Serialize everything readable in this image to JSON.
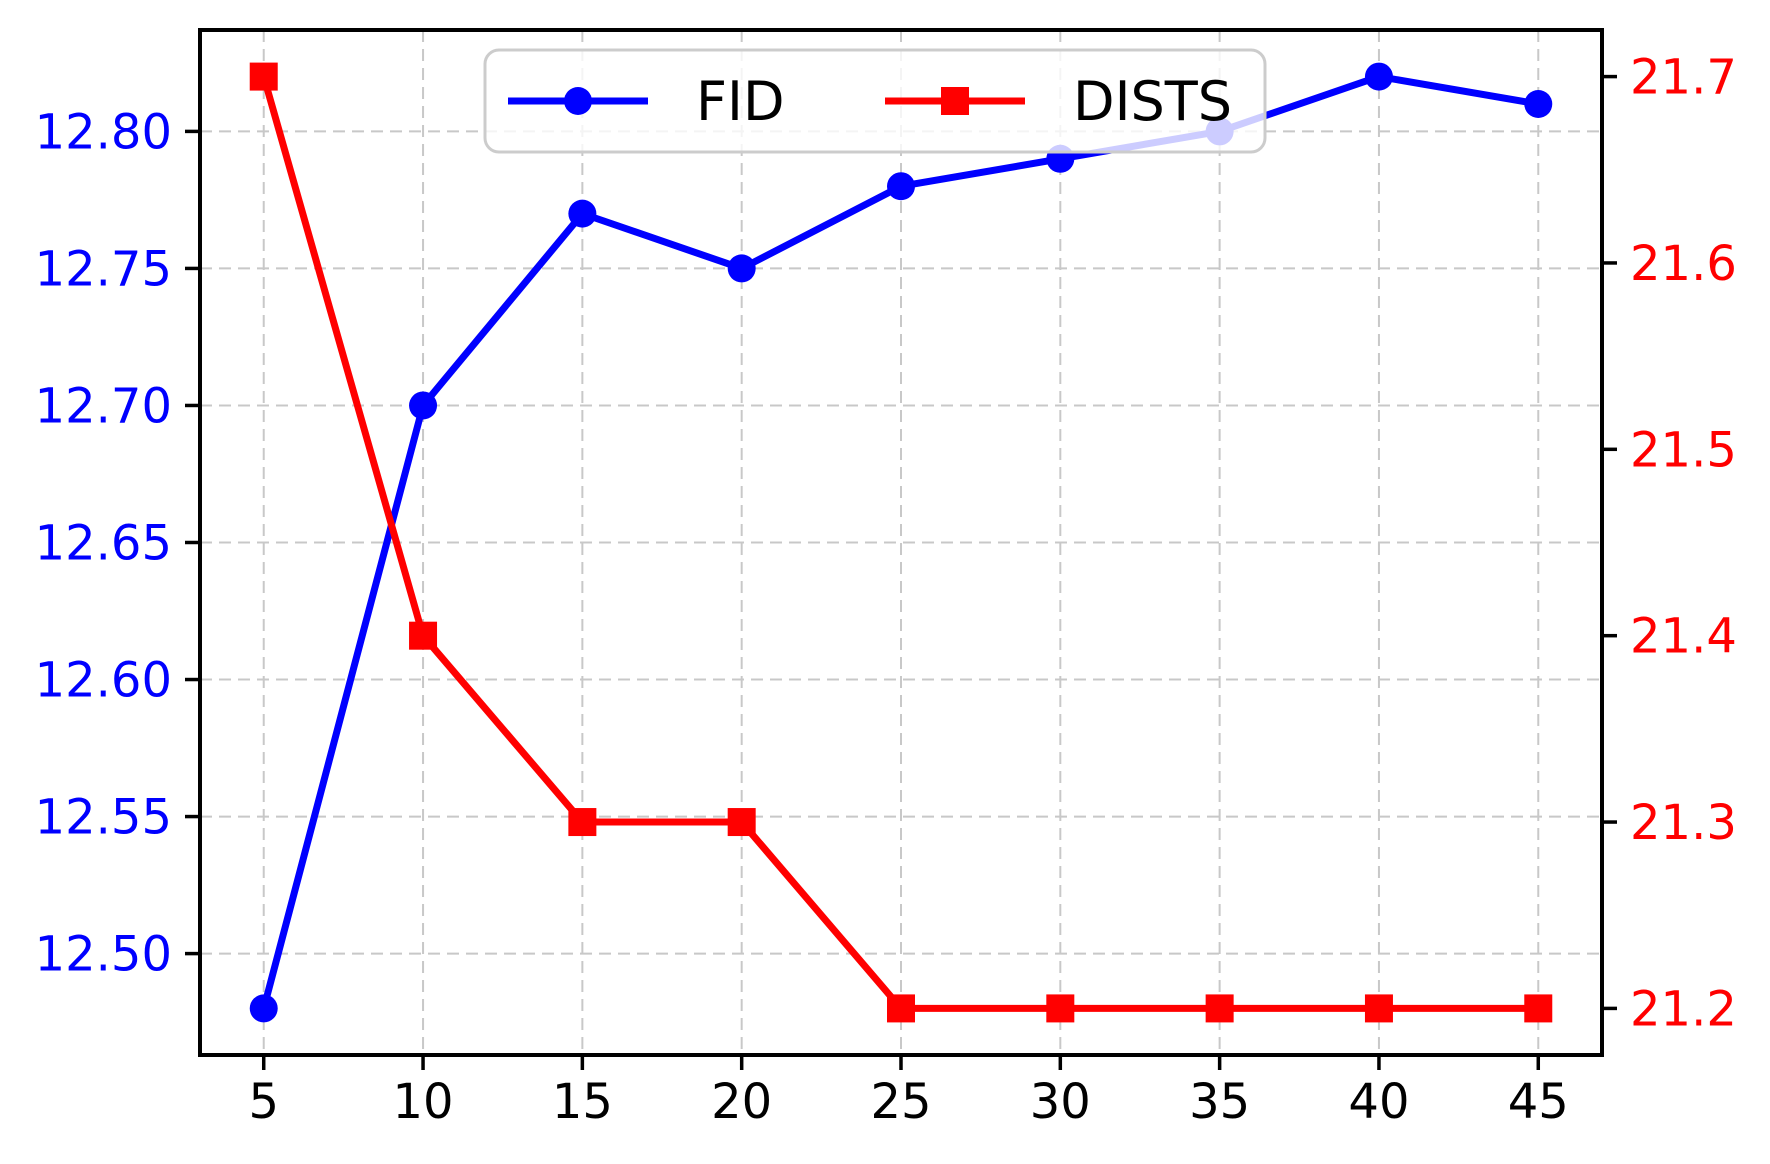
{
  "chart_data": {
    "type": "line",
    "title": "",
    "xlabel": "",
    "ylabel_left": "",
    "ylabel_right": "",
    "x": [
      5,
      10,
      15,
      20,
      25,
      30,
      35,
      40,
      45
    ],
    "series": [
      {
        "name": "FID",
        "axis": "left",
        "color": "#0000ff",
        "marker": "circle",
        "values": [
          12.48,
          12.7,
          12.77,
          12.75,
          12.78,
          12.79,
          12.8,
          12.82,
          12.81
        ]
      },
      {
        "name": "DISTS",
        "axis": "right",
        "color": "#ff0000",
        "marker": "square",
        "values": [
          21.7,
          21.4,
          21.3,
          21.3,
          21.2,
          21.2,
          21.2,
          21.2,
          21.2
        ]
      }
    ],
    "xlim": [
      3,
      47
    ],
    "ylim_left": [
      12.463,
      12.837
    ],
    "ylim_right": [
      21.175,
      21.725
    ],
    "xticks": [
      5,
      10,
      15,
      20,
      25,
      30,
      35,
      40,
      45
    ],
    "yticks_left": [
      "12.50",
      "12.55",
      "12.60",
      "12.65",
      "12.70",
      "12.75",
      "12.80"
    ],
    "yticks_right": [
      "21.2",
      "21.3",
      "21.4",
      "21.5",
      "21.6",
      "21.7"
    ],
    "xtick_color": "#000000",
    "left_tick_color": "#0000ff",
    "right_tick_color": "#ff0000",
    "grid": true,
    "grid_color": "#c8c8c8",
    "spine_color": "#000000",
    "legend_position": "upper center",
    "legend": [
      "FID",
      "DISTS"
    ]
  }
}
